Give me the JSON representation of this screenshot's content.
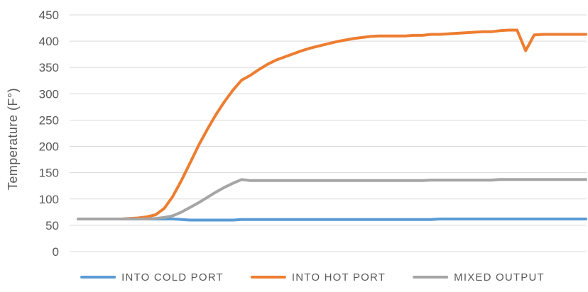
{
  "chart_data": {
    "type": "line",
    "title": "",
    "xlabel": "",
    "ylabel": "Temperature (F°)",
    "ylim": [
      0,
      450
    ],
    "yticks": [
      "0",
      "50",
      "100",
      "150",
      "200",
      "250",
      "300",
      "350",
      "400",
      "450"
    ],
    "grid": true,
    "legend_position": "bottom",
    "x": [
      0,
      1,
      2,
      3,
      4,
      5,
      6,
      7,
      8,
      9,
      10,
      11,
      12,
      13,
      14,
      15,
      16,
      17,
      18,
      19,
      20,
      21,
      22,
      23,
      24,
      25,
      26,
      27,
      28,
      29,
      30,
      31,
      32,
      33,
      34,
      35,
      36,
      37,
      38,
      39,
      40,
      41,
      42,
      43,
      44,
      45,
      46,
      47,
      48,
      49,
      50,
      51,
      52,
      53,
      54,
      55,
      56,
      57,
      58,
      59
    ],
    "series": [
      {
        "name": "INTO COLD PORT",
        "color": "#5b9bd5",
        "values": [
          62,
          62,
          62,
          62,
          62,
          62,
          62,
          62,
          62,
          62,
          62,
          62,
          61,
          60,
          60,
          60,
          60,
          60,
          60,
          61,
          61,
          61,
          61,
          61,
          61,
          61,
          61,
          61,
          61,
          61,
          61,
          61,
          61,
          61,
          61,
          61,
          61,
          61,
          61,
          61,
          61,
          61,
          62,
          62,
          62,
          62,
          62,
          62,
          62,
          62,
          62,
          62,
          62,
          62,
          62,
          62,
          62,
          62,
          62,
          62
        ]
      },
      {
        "name": "INTO HOT PORT",
        "color": "#ed7d31",
        "values": [
          62,
          62,
          62,
          62,
          62,
          62,
          63,
          64,
          66,
          70,
          82,
          105,
          135,
          168,
          202,
          232,
          260,
          285,
          307,
          326,
          335,
          346,
          356,
          364,
          370,
          376,
          382,
          387,
          391,
          395,
          399,
          402,
          405,
          407,
          409,
          410,
          410,
          410,
          410,
          411,
          411,
          413,
          413,
          414,
          415,
          416,
          417,
          418,
          418,
          420,
          421,
          421,
          382,
          412,
          413,
          413,
          413,
          413,
          413,
          413
        ]
      },
      {
        "name": "MIXED OUTPUT",
        "color": "#a5a5a5",
        "values": [
          62,
          62,
          62,
          62,
          62,
          62,
          62,
          62,
          62,
          63,
          65,
          68,
          75,
          84,
          93,
          103,
          113,
          122,
          130,
          137,
          135,
          135,
          135,
          135,
          135,
          135,
          135,
          135,
          135,
          135,
          135,
          135,
          135,
          135,
          135,
          135,
          135,
          135,
          135,
          135,
          135,
          136,
          136,
          136,
          136,
          136,
          136,
          136,
          136,
          137,
          137,
          137,
          137,
          137,
          137,
          137,
          137,
          137,
          137,
          137
        ]
      }
    ]
  }
}
